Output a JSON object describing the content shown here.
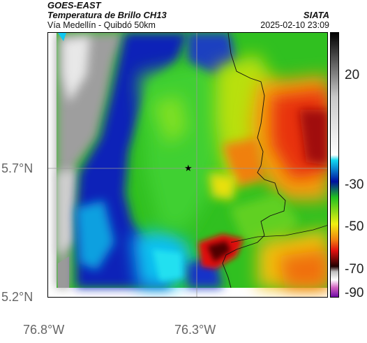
{
  "header": {
    "title_line1": "GOES-EAST",
    "title_line2": "Temperatura de Brillo CH13",
    "subtitle": "Vía Medellín - Quibdó 50km",
    "source": "SIATA",
    "timestamp": "2025-02-10 23:09"
  },
  "axes": {
    "lat_labels": [
      "5.7°N",
      "5.2°N"
    ],
    "lon_labels": [
      "76.8°W",
      "76.3°W"
    ]
  },
  "colorbar": {
    "ticks": [
      "20",
      "-30",
      "-50",
      "-70",
      "-90"
    ]
  },
  "colors": {
    "cold": "#d01010",
    "very_cold": "#3a0000",
    "mid": "#28d020",
    "warm_ocean": "#1030c0",
    "cyan": "#10c8f0",
    "clear": "#9a9a9a"
  }
}
